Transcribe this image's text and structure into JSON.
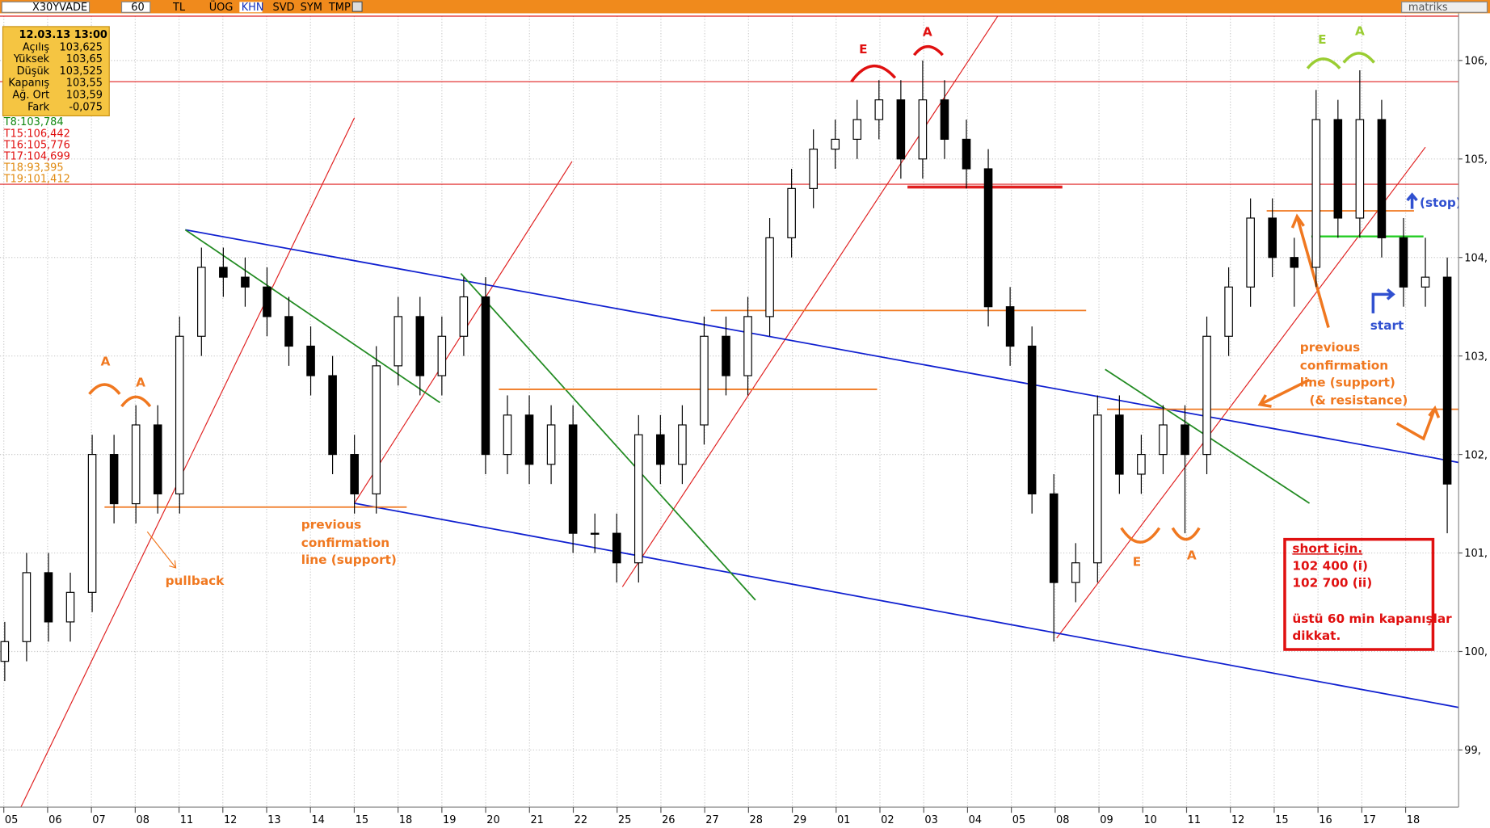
{
  "toolbar": {
    "symbol": "X30YVADE",
    "period": "60",
    "currency": "TL",
    "tabs": [
      "ÜOG",
      "KHN",
      "SVD",
      "SYM",
      "TMP"
    ],
    "brand": "matriks"
  },
  "info_panel": {
    "datetime": "12.03.13 13:00",
    "rows": [
      [
        "Açılış",
        "103,625"
      ],
      [
        "Yüksek",
        "103,65"
      ],
      [
        "Düşük",
        "103,525"
      ],
      [
        "Kapanış",
        "103,55"
      ],
      [
        "Ağ. Ort",
        "103,59"
      ],
      [
        "Fark",
        "-0,075"
      ]
    ],
    "levels": [
      "T8:103,784",
      "T15:106,442",
      "T16:105,776",
      "T17:104,699",
      "T18:93,395",
      "T19:101,412"
    ]
  },
  "chart_data": {
    "type": "candlestick",
    "categories": [
      "05",
      "06",
      "07",
      "08",
      "11",
      "12",
      "13",
      "14",
      "15",
      "18",
      "19",
      "20",
      "21",
      "22",
      "25",
      "26",
      "27",
      "28",
      "29",
      "01",
      "02",
      "03",
      "04",
      "05",
      "08",
      "09",
      "10",
      "11",
      "12",
      "15",
      "16",
      "17",
      "18"
    ],
    "open": [
      99.9,
      100.1,
      100.8,
      100.3,
      100.6,
      102.0,
      101.5,
      102.3,
      101.6,
      103.2,
      103.9,
      103.8,
      103.7,
      103.4,
      103.1,
      102.8,
      102.0,
      101.6,
      102.9,
      103.4,
      102.8,
      103.2,
      103.6,
      102.0,
      102.4,
      101.9,
      102.3,
      101.2,
      101.2,
      100.9,
      102.2,
      101.9,
      102.3,
      103.2,
      102.8,
      103.4,
      104.2,
      104.7,
      105.1,
      105.2,
      105.4,
      105.6,
      105.0,
      105.6,
      105.2,
      104.9,
      103.5,
      103.1,
      101.6,
      100.7,
      100.9,
      102.4,
      101.8,
      102.0,
      102.3,
      102.0,
      103.2,
      103.7,
      104.4,
      104.0,
      103.9,
      105.4,
      104.4,
      105.4,
      104.2,
      103.7,
      103.8
    ],
    "high": [
      100.3,
      101.0,
      101.0,
      100.8,
      102.2,
      102.2,
      102.5,
      102.5,
      103.4,
      104.1,
      104.1,
      104.0,
      103.9,
      103.6,
      103.3,
      103.0,
      102.2,
      103.1,
      103.6,
      103.6,
      103.4,
      103.8,
      103.8,
      102.6,
      102.6,
      102.5,
      102.5,
      101.4,
      101.4,
      102.4,
      102.4,
      102.5,
      103.4,
      103.4,
      103.6,
      104.4,
      104.9,
      105.3,
      105.4,
      105.6,
      105.8,
      105.8,
      106.0,
      105.8,
      105.4,
      105.1,
      103.7,
      103.3,
      101.8,
      101.1,
      102.6,
      102.6,
      102.2,
      102.5,
      102.5,
      103.4,
      103.9,
      104.6,
      104.6,
      104.2,
      105.7,
      105.6,
      105.9,
      105.6,
      104.4,
      104.2,
      104.0
    ],
    "low": [
      99.7,
      99.9,
      100.1,
      100.1,
      100.4,
      101.3,
      101.3,
      101.4,
      101.4,
      103.0,
      103.6,
      103.5,
      103.2,
      102.9,
      102.6,
      101.8,
      101.4,
      101.4,
      102.7,
      102.6,
      102.6,
      103.0,
      101.8,
      101.8,
      101.7,
      101.7,
      101.0,
      101.0,
      100.7,
      100.7,
      101.7,
      101.7,
      102.1,
      102.6,
      102.6,
      103.2,
      104.0,
      104.5,
      104.9,
      105.0,
      105.2,
      104.8,
      104.8,
      105.0,
      104.7,
      103.3,
      102.9,
      101.4,
      100.1,
      100.5,
      100.7,
      101.6,
      101.6,
      101.8,
      101.2,
      101.8,
      103.0,
      103.5,
      103.8,
      103.5,
      103.7,
      104.2,
      104.2,
      104.0,
      103.5,
      103.5,
      101.2
    ],
    "close": [
      100.1,
      100.8,
      100.3,
      100.6,
      102.0,
      101.5,
      102.3,
      101.6,
      103.2,
      103.9,
      103.8,
      103.7,
      103.4,
      103.1,
      102.8,
      102.0,
      101.6,
      102.9,
      103.4,
      102.8,
      103.2,
      103.6,
      102.0,
      102.4,
      101.9,
      102.3,
      101.2,
      101.2,
      100.9,
      102.2,
      101.9,
      102.3,
      103.2,
      102.8,
      103.4,
      104.2,
      104.7,
      105.1,
      105.2,
      105.4,
      105.6,
      105.0,
      105.6,
      105.2,
      104.9,
      103.5,
      103.1,
      101.6,
      100.7,
      100.9,
      102.4,
      101.8,
      102.0,
      102.3,
      102.0,
      103.2,
      103.7,
      104.4,
      104.0,
      103.9,
      105.4,
      104.4,
      105.4,
      104.2,
      103.7,
      103.8,
      101.7
    ],
    "up_color": "#ffffff",
    "down_color": "#000000",
    "ylim": [
      98.42,
      106.45
    ],
    "yticks": [
      {
        "value": 99,
        "label": "99,"
      },
      {
        "value": 100,
        "label": "100,"
      },
      {
        "value": 101,
        "label": "101,"
      },
      {
        "value": 102,
        "label": "102,"
      },
      {
        "value": 103,
        "label": "103,"
      },
      {
        "value": 104,
        "label": "104,"
      },
      {
        "value": 105,
        "label": "105,"
      },
      {
        "value": 106,
        "label": "106,"
      }
    ],
    "grid": true
  },
  "annotations": [
    "A",
    "A",
    "pullback",
    "previous",
    "confirmation",
    "line (support)",
    "E",
    "A",
    "E",
    "A",
    "(stop)",
    "start",
    "previous",
    "confirmation",
    "line (support)",
    "(& resistance)",
    "E",
    "A",
    "short için.",
    "102 400 (i)",
    "102 700 (ii)",
    "üstü 60 min kapanışlar",
    "dikkat."
  ]
}
